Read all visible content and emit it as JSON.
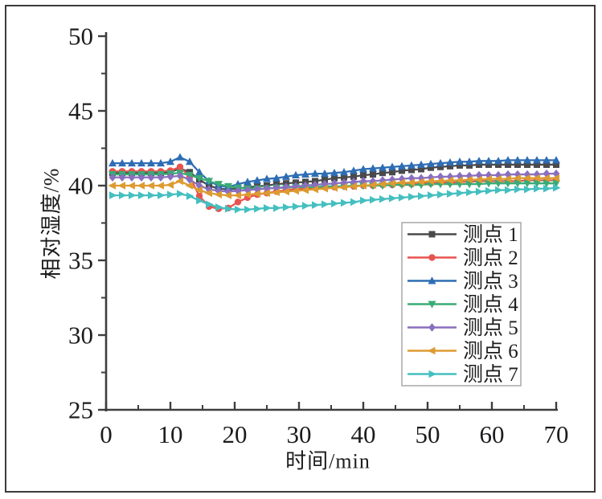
{
  "figure": {
    "background": "#ffffff",
    "border_color": "#3c3c3c"
  },
  "chart_data": {
    "type": "line",
    "title": "",
    "xlabel": "时间/min",
    "ylabel": "相对湿度/%",
    "xlim": [
      0,
      70
    ],
    "ylim": [
      25,
      50
    ],
    "x_major_ticks": [
      0,
      10,
      20,
      30,
      40,
      50,
      60,
      70
    ],
    "y_major_ticks": [
      25,
      30,
      35,
      40,
      45,
      50
    ],
    "x_minor_ticks": [
      5,
      15,
      25,
      35,
      45,
      55,
      65
    ],
    "y_minor_ticks": [
      27.5,
      32.5,
      37.5,
      42.5,
      47.5
    ],
    "grid": false,
    "legend_position": "inside-lower-right",
    "axis_color": "#3e3e40",
    "tick_label_color": "#1c1c1e",
    "legend_border_color": "#adadad",
    "x": [
      1,
      2.5,
      4,
      5.5,
      7,
      8.5,
      10,
      11.5,
      13,
      14.5,
      16,
      17.5,
      19,
      20.5,
      22,
      23.5,
      25,
      26.5,
      28,
      29.5,
      31,
      32.5,
      34,
      35.5,
      37,
      38.5,
      40,
      41.5,
      43,
      44.5,
      46,
      47.5,
      49,
      50.5,
      52,
      53.5,
      55,
      56.5,
      58,
      59.5,
      61,
      62.5,
      64,
      65.5,
      67,
      68.5,
      70
    ],
    "series": [
      {
        "name": "测点 1",
        "color": "#4a4a4c",
        "marker": "square",
        "values": [
          40.85,
          40.85,
          40.85,
          40.85,
          40.85,
          40.85,
          40.9,
          41.15,
          40.9,
          40.4,
          40.0,
          39.8,
          39.75,
          39.8,
          39.9,
          39.95,
          40.0,
          40.1,
          40.15,
          40.2,
          40.25,
          40.3,
          40.4,
          40.5,
          40.55,
          40.6,
          40.7,
          40.75,
          40.85,
          40.9,
          41.0,
          41.05,
          41.1,
          41.2,
          41.25,
          41.3,
          41.35,
          41.35,
          41.4,
          41.4,
          41.4,
          41.4,
          41.4,
          41.4,
          41.4,
          41.4,
          41.4
        ]
      },
      {
        "name": "测点 2",
        "color": "#e8534f",
        "marker": "circle",
        "values": [
          40.95,
          40.95,
          40.95,
          40.95,
          40.95,
          40.95,
          41.0,
          41.25,
          40.6,
          39.3,
          38.6,
          38.45,
          38.5,
          38.9,
          39.2,
          39.4,
          39.5,
          39.6,
          39.7,
          39.75,
          39.8,
          39.85,
          39.9,
          39.9,
          39.95,
          39.95,
          40.0,
          40.0,
          40.05,
          40.05,
          40.1,
          40.1,
          40.15,
          40.15,
          40.2,
          40.2,
          40.25,
          40.25,
          40.3,
          40.3,
          40.3,
          40.3,
          40.3,
          40.35,
          40.35,
          40.35,
          40.35
        ]
      },
      {
        "name": "测点 3",
        "color": "#2e6db4",
        "marker": "triangle-up",
        "values": [
          41.5,
          41.5,
          41.5,
          41.5,
          41.5,
          41.5,
          41.6,
          41.9,
          41.6,
          40.9,
          40.3,
          40.0,
          39.9,
          40.1,
          40.25,
          40.35,
          40.45,
          40.5,
          40.6,
          40.7,
          40.75,
          40.8,
          40.8,
          40.85,
          40.9,
          41.0,
          41.1,
          41.15,
          41.2,
          41.25,
          41.3,
          41.35,
          41.4,
          41.45,
          41.5,
          41.55,
          41.6,
          41.6,
          41.65,
          41.65,
          41.65,
          41.7,
          41.7,
          41.7,
          41.7,
          41.7,
          41.7
        ]
      },
      {
        "name": "测点 4",
        "color": "#3aab76",
        "marker": "triangle-down",
        "values": [
          40.75,
          40.75,
          40.75,
          40.75,
          40.75,
          40.75,
          40.8,
          40.85,
          40.7,
          40.5,
          40.3,
          40.1,
          39.95,
          39.85,
          39.8,
          39.8,
          39.8,
          39.85,
          39.85,
          39.9,
          39.9,
          39.9,
          39.95,
          39.95,
          39.95,
          40.0,
          40.0,
          40.0,
          40.0,
          40.05,
          40.05,
          40.05,
          40.05,
          40.1,
          40.1,
          40.1,
          40.1,
          40.1,
          40.1,
          40.15,
          40.15,
          40.15,
          40.15,
          40.15,
          40.15,
          40.15,
          40.15
        ]
      },
      {
        "name": "测点 5",
        "color": "#8a6fbf",
        "marker": "diamond",
        "values": [
          40.55,
          40.55,
          40.55,
          40.55,
          40.55,
          40.55,
          40.6,
          40.65,
          40.4,
          40.0,
          39.75,
          39.65,
          39.6,
          39.65,
          39.7,
          39.75,
          39.8,
          39.85,
          39.9,
          39.95,
          40.0,
          40.05,
          40.1,
          40.15,
          40.2,
          40.25,
          40.3,
          40.3,
          40.35,
          40.4,
          40.45,
          40.5,
          40.5,
          40.55,
          40.6,
          40.6,
          40.65,
          40.65,
          40.7,
          40.7,
          40.7,
          40.75,
          40.75,
          40.75,
          40.75,
          40.8,
          40.8
        ]
      },
      {
        "name": "测点 6",
        "color": "#dd9b31",
        "marker": "triangle-left",
        "values": [
          40.0,
          40.0,
          40.0,
          40.0,
          40.0,
          40.0,
          40.05,
          40.3,
          40.0,
          39.7,
          39.5,
          39.4,
          39.35,
          39.35,
          39.4,
          39.45,
          39.5,
          39.55,
          39.6,
          39.65,
          39.7,
          39.75,
          39.8,
          39.85,
          39.9,
          39.95,
          40.0,
          40.05,
          40.1,
          40.15,
          40.2,
          40.2,
          40.25,
          40.3,
          40.3,
          40.35,
          40.35,
          40.4,
          40.4,
          40.45,
          40.45,
          40.45,
          40.5,
          40.5,
          40.5,
          40.5,
          40.5
        ]
      },
      {
        "name": "测点 7",
        "color": "#45bfc0",
        "marker": "triangle-right",
        "values": [
          39.35,
          39.35,
          39.35,
          39.35,
          39.35,
          39.35,
          39.4,
          39.45,
          39.3,
          39.0,
          38.75,
          38.55,
          38.45,
          38.4,
          38.4,
          38.45,
          38.5,
          38.5,
          38.55,
          38.6,
          38.65,
          38.7,
          38.75,
          38.8,
          38.85,
          38.9,
          39.0,
          39.05,
          39.1,
          39.15,
          39.2,
          39.25,
          39.3,
          39.35,
          39.4,
          39.45,
          39.5,
          39.55,
          39.6,
          39.65,
          39.7,
          39.7,
          39.75,
          39.75,
          39.8,
          39.8,
          39.85
        ]
      }
    ]
  }
}
